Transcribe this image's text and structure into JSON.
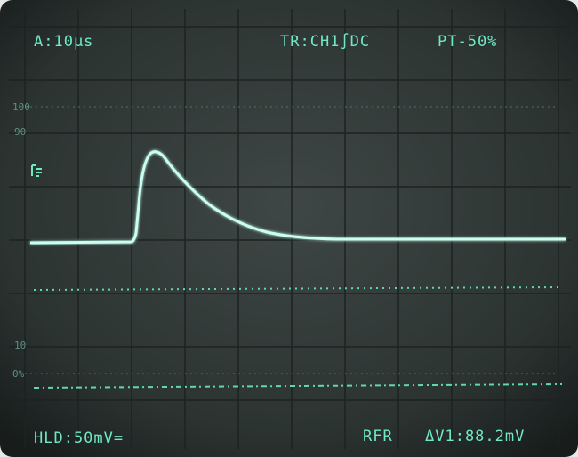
{
  "display": {
    "top": {
      "timebase": "A:10µs",
      "trigger": "TR:CH1∫DC",
      "position": "PT-50%"
    },
    "scale_labels": {
      "upper_full": "100",
      "upper": "90",
      "lower": "10",
      "lower_zero": "0%"
    },
    "bottom": {
      "hold": "HLD:50mV=",
      "mode": "RFR",
      "measurement": "ΔV1:88.2mV"
    }
  }
}
